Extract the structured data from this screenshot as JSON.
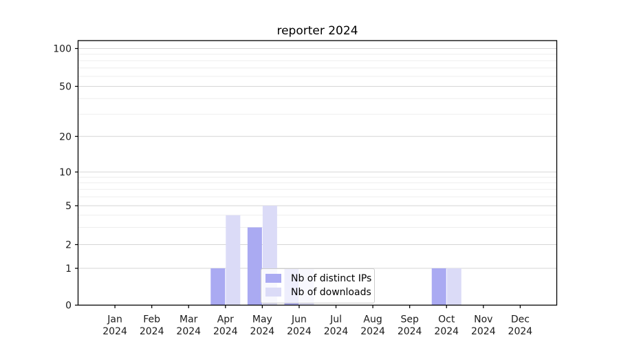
{
  "chart_data": {
    "type": "bar",
    "title": "reporter 2024",
    "categories": [
      "Jan",
      "Feb",
      "Mar",
      "Apr",
      "May",
      "Jun",
      "Jul",
      "Aug",
      "Sep",
      "Oct",
      "Nov",
      "Dec"
    ],
    "x_year_label": "2024",
    "series": [
      {
        "name": "Nb of distinct IPs",
        "color": "#aaaaf2",
        "values": [
          0,
          0,
          0,
          1,
          3,
          1,
          0,
          0,
          0,
          1,
          0,
          0
        ]
      },
      {
        "name": "Nb of downloads",
        "color": "#dbdbf7",
        "values": [
          0,
          0,
          0,
          4,
          5,
          1,
          0,
          0,
          0,
          1,
          0,
          0
        ]
      }
    ],
    "y_axis": {
      "scale": "log-like with 0 baseline",
      "ticks": [
        0,
        1,
        2,
        5,
        10,
        20,
        50,
        100
      ],
      "minor_ticks": [
        3,
        4,
        6,
        7,
        8,
        9,
        30,
        40,
        60,
        70,
        80,
        90
      ],
      "ylim": [
        0,
        120
      ]
    },
    "legend_position": "lower center",
    "colors": {
      "grid_major": "#d6d6d6",
      "grid_minor": "#ededed",
      "axis": "#000000",
      "text": "#1a1a1a"
    }
  }
}
